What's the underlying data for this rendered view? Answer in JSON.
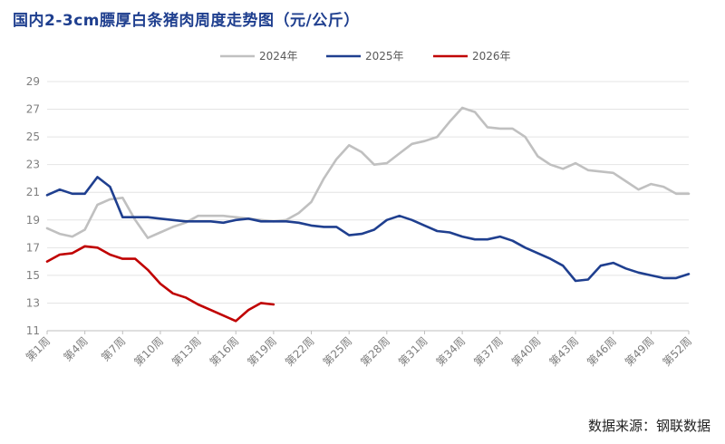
{
  "title": "国内2-3cm膘厚白条猪肉周度走势图（元/公斤）",
  "source": "数据来源：钢联数据",
  "chart_data": {
    "type": "line",
    "title": "国内2-3cm膘厚白条猪肉周度走势图（元/公斤）",
    "xlabel": "",
    "ylabel": "",
    "ylim": [
      11,
      29
    ],
    "yticks": [
      11,
      13,
      15,
      17,
      19,
      21,
      23,
      25,
      27,
      29
    ],
    "x_tick_labels": [
      "第1周",
      "第4周",
      "第7周",
      "第10周",
      "第13周",
      "第16周",
      "第19周",
      "第22周",
      "第25周",
      "第28周",
      "第31周",
      "第34周",
      "第37周",
      "第40周",
      "第43周",
      "第46周",
      "第49周",
      "第52周"
    ],
    "x_tick_weeks": [
      1,
      4,
      7,
      10,
      13,
      16,
      19,
      22,
      25,
      28,
      31,
      34,
      37,
      40,
      43,
      46,
      49,
      52
    ],
    "grid": "horizontal",
    "legend_position": "top-center",
    "series": [
      {
        "name": "2024年",
        "color": "#c0c0c0",
        "weeks": [
          1,
          2,
          3,
          4,
          5,
          6,
          7,
          8,
          9,
          10,
          11,
          12,
          13,
          14,
          15,
          16,
          17,
          18,
          19,
          20,
          21,
          22,
          23,
          24,
          25,
          26,
          27,
          28,
          29,
          30,
          31,
          32,
          33,
          34,
          35,
          36,
          37,
          38,
          39,
          40,
          41,
          42,
          43,
          44,
          45,
          46,
          47,
          48,
          49,
          50,
          51,
          52
        ],
        "values": [
          18.4,
          18.0,
          17.8,
          18.3,
          20.1,
          20.5,
          20.6,
          19.0,
          17.7,
          18.1,
          18.5,
          18.8,
          19.3,
          19.3,
          19.3,
          19.2,
          19.1,
          19.0,
          18.9,
          19.0,
          19.5,
          20.3,
          22.0,
          23.4,
          24.4,
          23.9,
          23.0,
          23.1,
          23.8,
          24.5,
          24.7,
          25.0,
          26.1,
          27.1,
          26.8,
          25.7,
          25.6,
          25.6,
          25.0,
          23.6,
          23.0,
          22.7,
          23.1,
          22.6,
          22.5,
          22.4,
          21.8,
          21.2,
          21.6,
          21.4,
          20.9,
          20.9
        ]
      },
      {
        "name": "2025年",
        "color": "#1f3f8f",
        "weeks": [
          1,
          2,
          3,
          4,
          5,
          6,
          7,
          8,
          9,
          10,
          11,
          12,
          13,
          14,
          15,
          16,
          17,
          18,
          19,
          20,
          21,
          22,
          23,
          24,
          25,
          26,
          27,
          28,
          29,
          30,
          31,
          32,
          33,
          34,
          35,
          36,
          37,
          38,
          39,
          40,
          41,
          42,
          43,
          44,
          45,
          46,
          47,
          48,
          49,
          50,
          51,
          52
        ],
        "values": [
          20.8,
          21.2,
          20.9,
          20.9,
          22.1,
          21.4,
          19.2,
          19.2,
          19.2,
          19.1,
          19.0,
          18.9,
          18.9,
          18.9,
          18.8,
          19.0,
          19.1,
          18.9,
          18.9,
          18.9,
          18.8,
          18.6,
          18.5,
          18.5,
          17.9,
          18.0,
          18.3,
          19.0,
          19.3,
          19.0,
          18.6,
          18.2,
          18.1,
          17.8,
          17.6,
          17.6,
          17.8,
          17.5,
          17.0,
          16.6,
          16.2,
          15.7,
          14.6,
          14.7,
          15.7,
          15.9,
          15.5,
          15.2,
          15.0,
          14.8,
          14.8,
          15.1
        ]
      },
      {
        "name": "2026年",
        "color": "#c00000",
        "weeks": [
          1,
          2,
          3,
          4,
          5,
          6,
          7,
          8,
          9,
          10,
          11,
          12,
          13,
          14,
          15,
          16,
          17,
          18,
          19,
          20
        ],
        "values": [
          16.0,
          16.5,
          16.6,
          17.1,
          17.0,
          16.5,
          16.2,
          16.2,
          15.4,
          14.4,
          13.7,
          13.4,
          12.9,
          12.5,
          12.1,
          11.7,
          12.5,
          13.0,
          12.9,
          null
        ]
      }
    ]
  }
}
